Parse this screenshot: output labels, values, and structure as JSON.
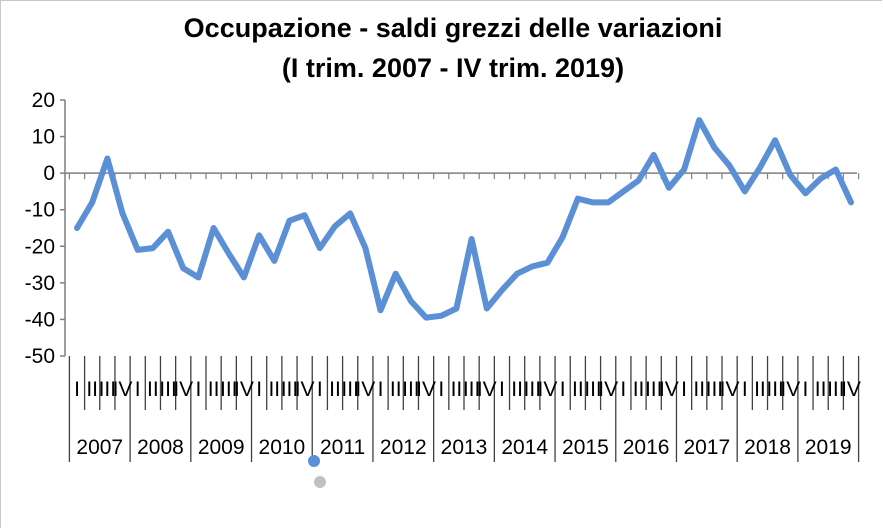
{
  "chart_data": {
    "type": "line",
    "title": "Occupazione - saldi grezzi delle variazioni",
    "subtitle": "(I trim. 2007 - IV trim. 2019)",
    "xlabel": "",
    "ylabel": "",
    "ylim": [
      -50,
      20
    ],
    "yticks": [
      "20",
      "10",
      "0",
      "-10",
      "-20",
      "-30",
      "-40",
      "-50"
    ],
    "years": [
      "2007",
      "2008",
      "2009",
      "2010",
      "2011",
      "2012",
      "2013",
      "2014",
      "2015",
      "2016",
      "2017",
      "2018",
      "2019"
    ],
    "quarter_labels": [
      "I",
      "II",
      "III",
      "IV"
    ],
    "grid": false,
    "legend": "none",
    "color": "#5b8fd6",
    "series": [
      {
        "values": [
          -15,
          -8,
          4,
          -11,
          -21,
          -20.5,
          -16,
          -26,
          -28.5,
          -15,
          -22,
          -28.5,
          -17,
          -24,
          -13,
          -11.5,
          -20.5,
          -14.5,
          -11,
          -20.5,
          -37.5,
          -27.5,
          -35,
          -39.5,
          -39,
          -37,
          -18,
          -37,
          -32,
          -27.5,
          -25.5,
          -24.5,
          -17.5,
          -7,
          -8,
          -8,
          -5,
          -2,
          5,
          -4,
          1,
          14.5,
          7,
          2,
          -5,
          1.5,
          9,
          -0.5,
          -5.5,
          -1.5,
          1,
          -8
        ]
      }
    ]
  }
}
